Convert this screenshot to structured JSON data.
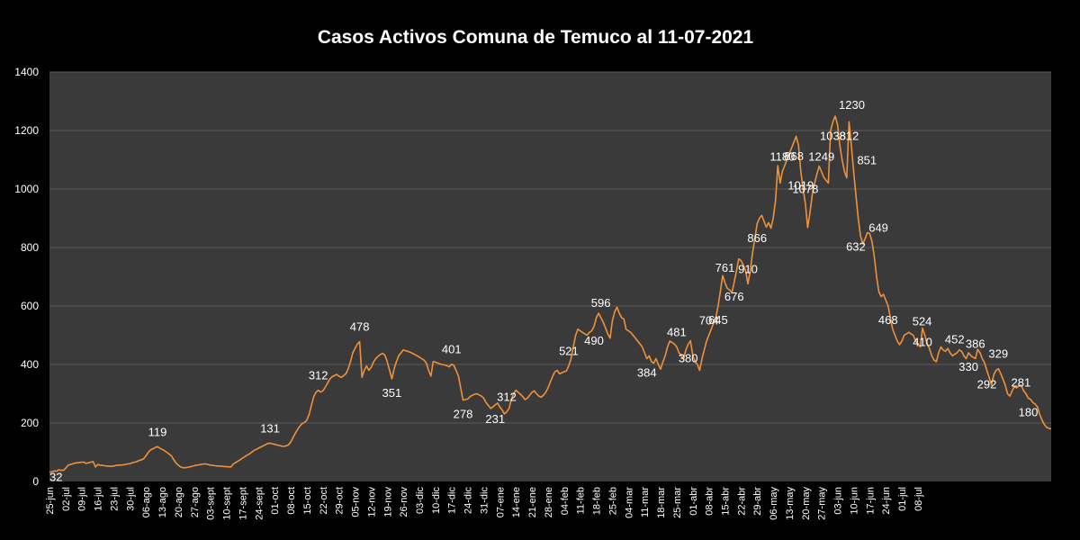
{
  "chart_data": {
    "type": "line",
    "title": "Casos Activos Comuna de Temuco al  11-07-2021",
    "xlabel": "",
    "ylabel": "",
    "ylim": [
      0,
      1400
    ],
    "yticks": [
      0,
      200,
      400,
      600,
      800,
      1000,
      1200,
      1400
    ],
    "grid": true,
    "legend": "none",
    "x_tick_labels": [
      "25-jun",
      "02-jul",
      "09-jul",
      "16-jul",
      "23-jul",
      "30-jul",
      "06-ago",
      "13-ago",
      "20-ago",
      "27-ago",
      "03-sept",
      "10-sept",
      "17-sept",
      "24-sept",
      "01-oct",
      "08-oct",
      "15-oct",
      "22-oct",
      "29-oct",
      "05-nov",
      "12-nov",
      "19-nov",
      "26-nov",
      "03-dic",
      "10-dic",
      "17-dic",
      "24-dic",
      "31-dic",
      "07-ene",
      "14-ene",
      "21-ene",
      "28-ene",
      "04-feb",
      "11-feb",
      "18-feb",
      "25-feb",
      "04-mar",
      "11-mar",
      "18-mar",
      "25-mar",
      "01-abr",
      "08-abr",
      "15-abr",
      "22-abr",
      "29-abr",
      "06-may",
      "13-may",
      "20-may",
      "27-may",
      "03-jun",
      "10-jun",
      "17-jun",
      "24-jun",
      "01-jul",
      "08-jul"
    ],
    "points_per_week": 7,
    "values": [
      32,
      33,
      36,
      35,
      40,
      38,
      38,
      45,
      55,
      58,
      60,
      63,
      64,
      65,
      66,
      66,
      62,
      64,
      66,
      68,
      50,
      58,
      56,
      55,
      54,
      53,
      52,
      52,
      53,
      55,
      56,
      56,
      57,
      58,
      60,
      61,
      64,
      66,
      68,
      72,
      74,
      78,
      88,
      100,
      108,
      112,
      116,
      119,
      114,
      110,
      106,
      100,
      94,
      88,
      76,
      64,
      56,
      50,
      47,
      47,
      48,
      50,
      52,
      54,
      56,
      57,
      58,
      60,
      60,
      58,
      56,
      55,
      54,
      53,
      53,
      52,
      51,
      51,
      50,
      50,
      60,
      65,
      70,
      74,
      80,
      85,
      90,
      94,
      100,
      106,
      110,
      114,
      118,
      122,
      126,
      130,
      131,
      129,
      127,
      125,
      123,
      121,
      120,
      122,
      125,
      135,
      150,
      165,
      178,
      190,
      198,
      202,
      210,
      230,
      260,
      290,
      305,
      312,
      306,
      310,
      322,
      336,
      350,
      358,
      362,
      366,
      360,
      356,
      362,
      368,
      385,
      410,
      440,
      455,
      470,
      478,
      356,
      380,
      395,
      380,
      390,
      408,
      420,
      428,
      434,
      438,
      432,
      410,
      380,
      351,
      385,
      410,
      430,
      440,
      450,
      447,
      445,
      442,
      438,
      434,
      430,
      425,
      420,
      415,
      405,
      380,
      360,
      410,
      408,
      405,
      402,
      400,
      398,
      396,
      392,
      401,
      397,
      380,
      360,
      320,
      278,
      280,
      282,
      290,
      295,
      298,
      300,
      296,
      292,
      285,
      270,
      260,
      250,
      255,
      262,
      268,
      255,
      245,
      231,
      238,
      250,
      280,
      300,
      312,
      305,
      298,
      290,
      280,
      285,
      295,
      305,
      310,
      300,
      292,
      288,
      295,
      305,
      320,
      340,
      360,
      375,
      380,
      368,
      372,
      375,
      378,
      395,
      420,
      460,
      500,
      521,
      515,
      510,
      505,
      500,
      510,
      515,
      530,
      560,
      575,
      560,
      545,
      525,
      505,
      490,
      550,
      580,
      596,
      575,
      560,
      555,
      520,
      515,
      510,
      500,
      490,
      480,
      470,
      460,
      440,
      420,
      430,
      410,
      405,
      420,
      400,
      384,
      410,
      430,
      460,
      480,
      475,
      470,
      460,
      440,
      430,
      420,
      450,
      470,
      481,
      430,
      410,
      400,
      380,
      420,
      450,
      480,
      500,
      520,
      540,
      560,
      600,
      650,
      704,
      680,
      660,
      655,
      645,
      680,
      720,
      761,
      755,
      740,
      720,
      676,
      720,
      780,
      830,
      880,
      900,
      910,
      890,
      870,
      885,
      866,
      900,
      960,
      1080,
      1020,
      1060,
      1080,
      1100,
      1120,
      1140,
      1160,
      1180,
      1150,
      1060,
      1000,
      950,
      868,
      920,
      980,
      1019,
      1050,
      1078,
      1060,
      1040,
      1030,
      1020,
      1200,
      1230,
      1249,
      1220,
      1150,
      1100,
      1060,
      1038,
      1230,
      1150,
      1060,
      980,
      900,
      840,
      812,
      830,
      851,
      848,
      820,
      770,
      700,
      649,
      632,
      640,
      620,
      600,
      560,
      520,
      500,
      480,
      468,
      480,
      500,
      505,
      510,
      505,
      500,
      480,
      470,
      460,
      524,
      500,
      470,
      455,
      430,
      415,
      410,
      440,
      460,
      450,
      445,
      455,
      440,
      430,
      435,
      440,
      450,
      445,
      430,
      420,
      440,
      430,
      425,
      420,
      452,
      440,
      420,
      405,
      380,
      355,
      330,
      365,
      380,
      386,
      370,
      350,
      330,
      300,
      292,
      310,
      325,
      320,
      328,
      329,
      310,
      300,
      285,
      281,
      270,
      265,
      255,
      230,
      210,
      195,
      185,
      182,
      180
    ]
  },
  "data_labels": [
    {
      "i": 0,
      "text": "32",
      "pos": "right-below"
    },
    {
      "i": 47,
      "text": "119",
      "pos": "above"
    },
    {
      "i": 96,
      "text": "131",
      "pos": "above"
    },
    {
      "i": 117,
      "text": "312",
      "pos": "above"
    },
    {
      "i": 135,
      "text": "478",
      "pos": "above"
    },
    {
      "i": 149,
      "text": "351",
      "pos": "below"
    },
    {
      "i": 175,
      "text": "401",
      "pos": "above"
    },
    {
      "i": 180,
      "text": "278",
      "pos": "below"
    },
    {
      "i": 194,
      "text": "231",
      "pos": "below"
    },
    {
      "i": 199,
      "text": "312",
      "pos": "above"
    },
    {
      "i": 226,
      "text": "521",
      "pos": "above"
    },
    {
      "i": 237,
      "text": "490",
      "pos": "below"
    },
    {
      "i": 240,
      "text": "596",
      "pos": "above"
    },
    {
      "i": 260,
      "text": "384",
      "pos": "below"
    },
    {
      "i": 273,
      "text": "481",
      "pos": "above"
    },
    {
      "i": 278,
      "text": "380",
      "pos": "below"
    },
    {
      "i": 287,
      "text": "704",
      "pos": "above"
    },
    {
      "i": 291,
      "text": "645",
      "pos": "below"
    },
    {
      "i": 294,
      "text": "761",
      "pos": "above"
    },
    {
      "i": 298,
      "text": "676",
      "pos": "below"
    },
    {
      "i": 304,
      "text": "910",
      "pos": "above"
    },
    {
      "i": 308,
      "text": "866",
      "pos": "below"
    },
    {
      "i": 319,
      "text": "1180",
      "pos": "above"
    },
    {
      "i": 324,
      "text": "868",
      "pos": "below"
    },
    {
      "i": 327,
      "text": "1019",
      "pos": "below"
    },
    {
      "i": 329,
      "text": "1078",
      "pos": "above"
    },
    {
      "i": 336,
      "text": "1249",
      "pos": "above"
    },
    {
      "i": 341,
      "text": "1038",
      "pos": "below"
    },
    {
      "i": 342,
      "text": "1230",
      "pos": "above-right"
    },
    {
      "i": 348,
      "text": "812",
      "pos": "below"
    },
    {
      "i": 350,
      "text": "851",
      "pos": "above-right"
    },
    {
      "i": 355,
      "text": "649",
      "pos": "above-right"
    },
    {
      "i": 356,
      "text": "632",
      "pos": "below-left"
    },
    {
      "i": 365,
      "text": "468",
      "pos": "below"
    },
    {
      "i": 374,
      "text": "524",
      "pos": "above-right"
    },
    {
      "i": 380,
      "text": "410",
      "pos": "below"
    },
    {
      "i": 394,
      "text": "452",
      "pos": "above"
    },
    {
      "i": 400,
      "text": "330",
      "pos": "below"
    },
    {
      "i": 403,
      "text": "386",
      "pos": "above"
    },
    {
      "i": 408,
      "text": "292",
      "pos": "below"
    },
    {
      "i": 413,
      "text": "329",
      "pos": "above"
    },
    {
      "i": 417,
      "text": "281",
      "pos": "above-right"
    },
    {
      "i": 426,
      "text": "180",
      "pos": "below"
    }
  ],
  "colors": {
    "background": "#000000",
    "plot_area": "#3a3a3a",
    "grid": "#5a5a5a",
    "line": "#f0913a",
    "text": "#ffffff"
  }
}
